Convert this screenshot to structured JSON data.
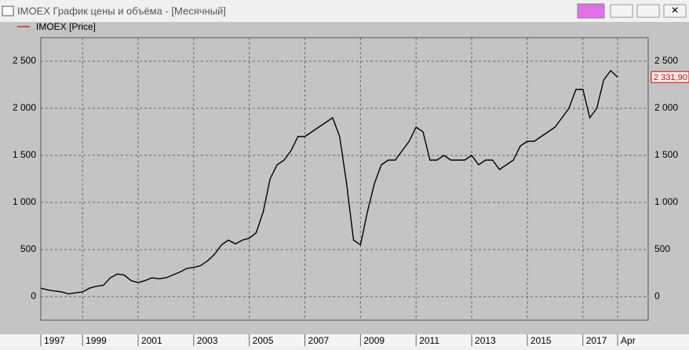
{
  "window": {
    "title": "IMOEX График цены и объёма - [Месячный]"
  },
  "chart_data": {
    "type": "line",
    "categories": [
      "1997",
      null,
      null,
      null,
      null,
      null,
      "1999",
      null,
      null,
      null,
      null,
      null,
      null,
      null,
      "2001",
      null,
      null,
      null,
      null,
      null,
      null,
      null,
      "2003",
      null,
      null,
      null,
      null,
      null,
      null,
      null,
      "2005",
      null,
      null,
      null,
      null,
      null,
      null,
      null,
      "2007",
      null,
      null,
      null,
      null,
      null,
      null,
      null,
      "2009",
      null,
      null,
      null,
      null,
      null,
      null,
      null,
      "2011",
      null,
      null,
      null,
      null,
      null,
      null,
      null,
      "2013",
      null,
      null,
      null,
      null,
      null,
      null,
      null,
      "2015",
      null,
      null,
      null,
      null,
      null,
      null,
      null,
      "2017",
      null,
      null,
      null,
      null,
      "Apr"
    ],
    "series": [
      {
        "name": "IMOEX [Price]",
        "color": "#000000",
        "legend_color": "#e00000",
        "values": [
          90,
          70,
          60,
          50,
          30,
          40,
          50,
          90,
          110,
          120,
          200,
          240,
          230,
          170,
          150,
          170,
          200,
          190,
          200,
          230,
          260,
          300,
          310,
          330,
          380,
          450,
          550,
          600,
          560,
          600,
          620,
          680,
          900,
          1250,
          1400,
          1450,
          1550,
          1700,
          1700,
          1750,
          1800,
          1850,
          1900,
          1700,
          1200,
          600,
          550,
          900,
          1200,
          1400,
          1450,
          1450,
          1550,
          1650,
          1800,
          1750,
          1450,
          1450,
          1500,
          1450,
          1450,
          1450,
          1500,
          1400,
          1450,
          1450,
          1350,
          1400,
          1450,
          1600,
          1650,
          1650,
          1700,
          1750,
          1800,
          1900,
          2000,
          2200,
          2200,
          1900,
          2000,
          2300,
          2400,
          2331.9
        ]
      }
    ],
    "last_price": {
      "value": 2331.9,
      "label": "2 331,90",
      "color": "#e00000"
    },
    "ylim": [
      -250,
      2750
    ],
    "yticks": [
      0,
      500,
      {
        "value": 1000,
        "label": "1 000"
      },
      {
        "value": 1500,
        "label": "1 500"
      },
      {
        "value": 2000,
        "label": "2 000"
      },
      {
        "value": 2500,
        "label": "2 500"
      }
    ],
    "grid": true
  }
}
